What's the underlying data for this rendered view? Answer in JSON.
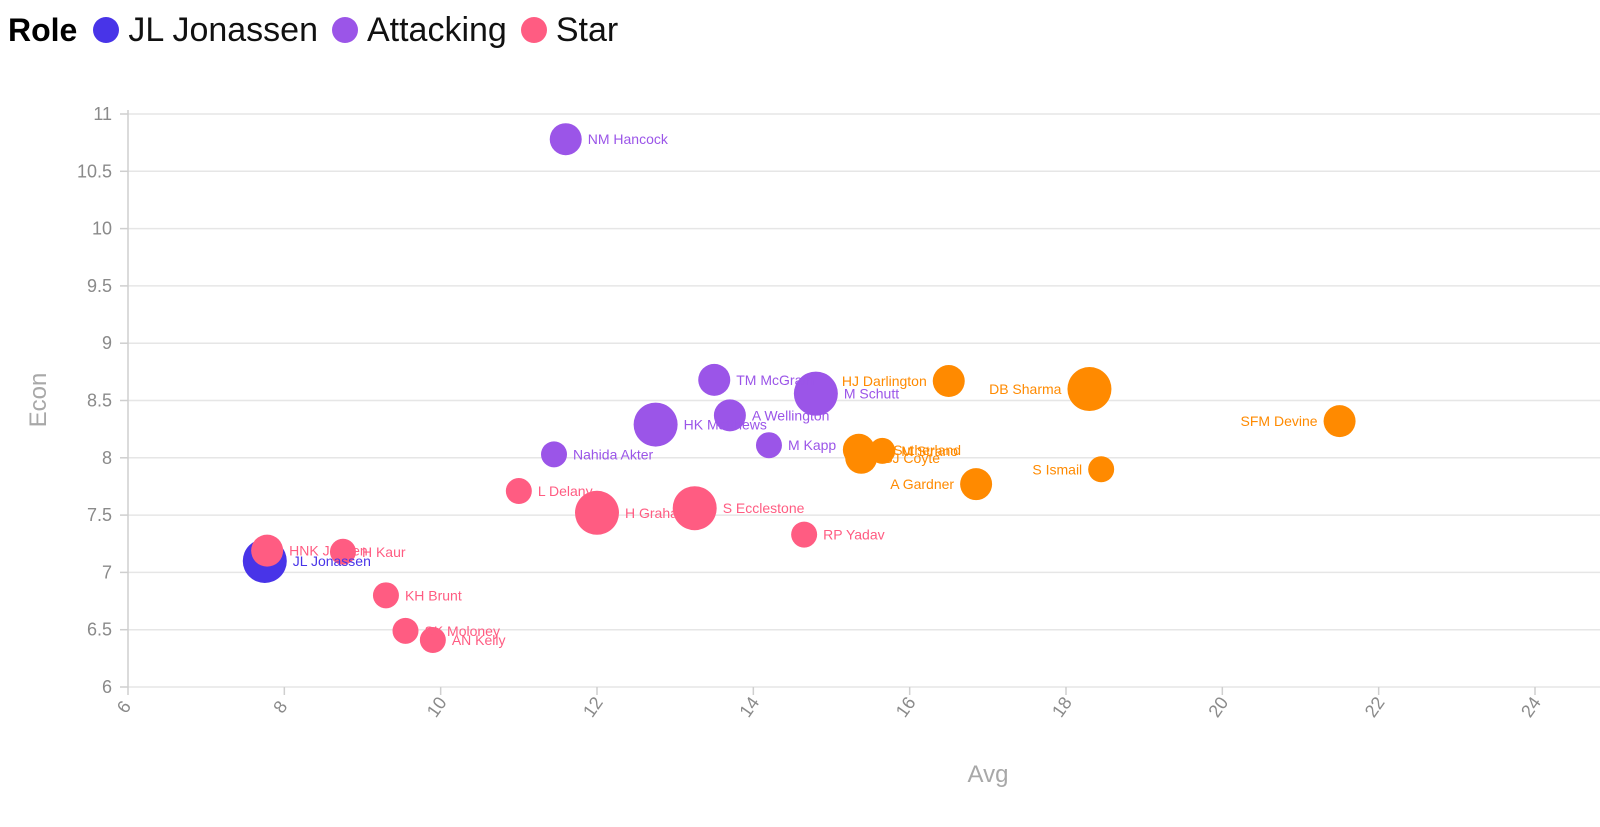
{
  "legend": {
    "title": "Role",
    "items": [
      {
        "label": "JL Jonassen",
        "color": "#4834e8"
      },
      {
        "label": "Attacking",
        "color": "#9b55e8"
      },
      {
        "label": "Star",
        "color": "#ff5c82"
      }
    ]
  },
  "chart_data": {
    "type": "scatter",
    "xlabel": "Avg",
    "ylabel": "Econ",
    "xlim": [
      6,
      24
    ],
    "ylim": [
      6,
      11
    ],
    "xticks": [
      6,
      8,
      10,
      12,
      14,
      16,
      18,
      20,
      22,
      24
    ],
    "yticks": [
      6,
      6.5,
      7,
      7.5,
      8,
      8.5,
      9,
      9.5,
      10,
      10.5,
      11
    ],
    "grid": true,
    "colors": {
      "JL Jonassen": "#4834e8",
      "Attacking": "#9b55e8",
      "Star": "#ff5c82",
      "Other": "#ff8a00"
    },
    "points": [
      {
        "name": "JL Jonassen",
        "avg": 7.75,
        "econ": 7.1,
        "group": "JL Jonassen",
        "size": "large"
      },
      {
        "name": "NM Hancock",
        "avg": 11.6,
        "econ": 10.78,
        "group": "Attacking",
        "size": "medium"
      },
      {
        "name": "TM McGrath",
        "avg": 13.5,
        "econ": 8.68,
        "group": "Attacking",
        "size": "medium"
      },
      {
        "name": "M Schutt",
        "avg": 14.8,
        "econ": 8.56,
        "group": "Attacking",
        "size": "large"
      },
      {
        "name": "A Wellington",
        "avg": 13.7,
        "econ": 8.37,
        "group": "Attacking",
        "size": "medium"
      },
      {
        "name": "HK Matthews",
        "avg": 12.75,
        "econ": 8.29,
        "group": "Attacking",
        "size": "large"
      },
      {
        "name": "M Kapp",
        "avg": 14.2,
        "econ": 8.11,
        "group": "Attacking",
        "size": "small"
      },
      {
        "name": "Nahida Akter",
        "avg": 11.45,
        "econ": 8.03,
        "group": "Attacking",
        "size": "small"
      },
      {
        "name": "L Delany",
        "avg": 11.0,
        "econ": 7.71,
        "group": "Star",
        "size": "small"
      },
      {
        "name": "H Graham",
        "avg": 12.0,
        "econ": 7.52,
        "group": "Star",
        "size": "large"
      },
      {
        "name": "S Ecclestone",
        "avg": 13.25,
        "econ": 7.56,
        "group": "Star",
        "size": "large"
      },
      {
        "name": "RP Yadav",
        "avg": 14.65,
        "econ": 7.33,
        "group": "Star",
        "size": "small"
      },
      {
        "name": "HNK Jensen",
        "avg": 7.78,
        "econ": 7.19,
        "group": "Star",
        "size": "medium"
      },
      {
        "name": "H Kaur",
        "avg": 8.75,
        "econ": 7.18,
        "group": "Star",
        "size": "small"
      },
      {
        "name": "KH Brunt",
        "avg": 9.3,
        "econ": 6.8,
        "group": "Star",
        "size": "small"
      },
      {
        "name": "SK Moloney",
        "avg": 9.55,
        "econ": 6.49,
        "group": "Star",
        "size": "small"
      },
      {
        "name": "AN Kelly",
        "avg": 9.9,
        "econ": 6.41,
        "group": "Star",
        "size": "small"
      },
      {
        "name": "HJ Darlington",
        "avg": 16.5,
        "econ": 8.67,
        "group": "Other",
        "size": "medium",
        "label_side": "left"
      },
      {
        "name": "DB Sharma",
        "avg": 18.3,
        "econ": 8.6,
        "group": "Other",
        "size": "large",
        "label_side": "left"
      },
      {
        "name": "SFM Devine",
        "avg": 21.5,
        "econ": 8.32,
        "group": "Other",
        "size": "medium",
        "label_side": "left"
      },
      {
        "name": "S Ismail",
        "avg": 18.45,
        "econ": 7.9,
        "group": "Other",
        "size": "small",
        "label_side": "left"
      },
      {
        "name": "A Gardner",
        "avg": 16.85,
        "econ": 7.77,
        "group": "Other",
        "size": "medium",
        "label_side": "left"
      },
      {
        "name": "A Sutherland",
        "avg": 15.35,
        "econ": 8.07,
        "group": "Other",
        "size": "medium"
      },
      {
        "name": "SJ Coyte",
        "avg": 15.38,
        "econ": 8.0,
        "group": "Other",
        "size": "medium"
      },
      {
        "name": "M Strano",
        "avg": 15.65,
        "econ": 8.06,
        "group": "Other",
        "size": "small"
      }
    ]
  }
}
